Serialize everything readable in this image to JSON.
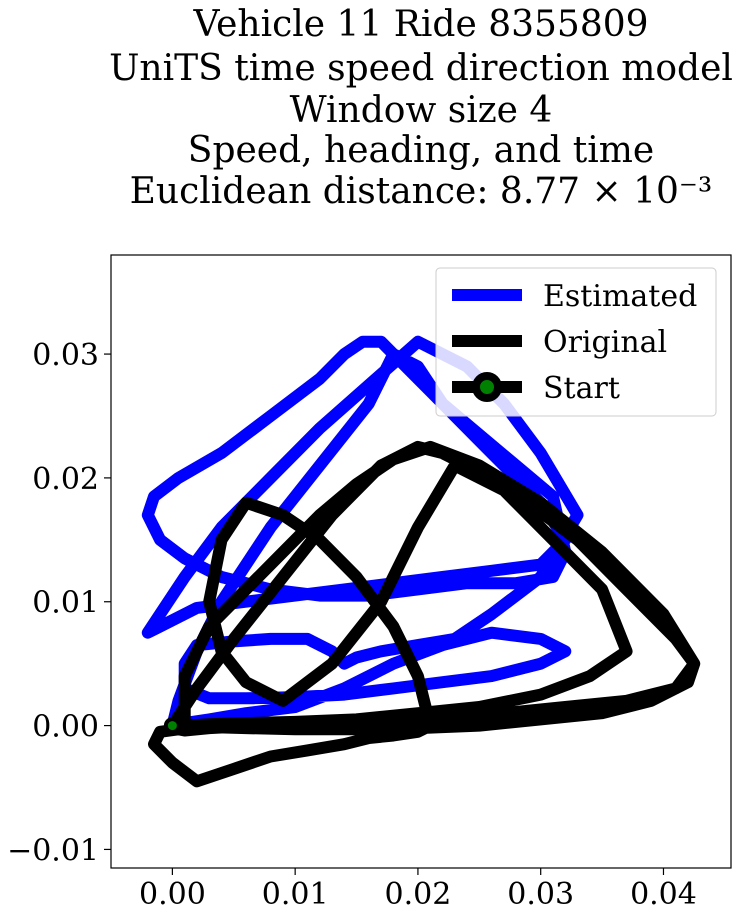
{
  "chart_data": {
    "type": "line",
    "title_lines": [
      "Vehicle 11 Ride 8355809",
      "UniTS time speed direction model",
      "Window size 4",
      "Speed, heading, and time",
      "Euclidean distance: 8.77 × 10⁻³"
    ],
    "xlabel": "",
    "ylabel": "",
    "xlim": [
      -0.005,
      0.0455
    ],
    "ylim": [
      -0.0115,
      0.038
    ],
    "xticks": [
      0.0,
      0.01,
      0.02,
      0.03,
      0.04
    ],
    "xtick_labels": [
      "0.00",
      "0.01",
      "0.02",
      "0.03",
      "0.04"
    ],
    "yticks": [
      -0.01,
      0.0,
      0.01,
      0.02,
      0.03
    ],
    "ytick_labels": [
      "−0.01",
      "0.00",
      "0.01",
      "0.02",
      "0.03"
    ],
    "grid": false,
    "legend_position": "upper-right",
    "series": [
      {
        "name": "Estimated",
        "color": "#0000ff",
        "x": [
          0.0,
          0.0005,
          0.002,
          0.004,
          0.008,
          0.012,
          0.016,
          0.018,
          0.02,
          0.022,
          0.025,
          0.028,
          0.031,
          0.032,
          0.031,
          0.028,
          0.024,
          0.02,
          0.016,
          0.012,
          0.008,
          0.004,
          0.001,
          -0.001,
          -0.002,
          -0.0015,
          0.0005,
          0.004,
          0.008,
          0.012,
          0.014,
          0.0155,
          0.017,
          0.019,
          0.021,
          0.023,
          0.025,
          0.027,
          0.03,
          0.032,
          0.03,
          0.026,
          0.022,
          0.018,
          0.014,
          0.01,
          0.006,
          0.002,
          -0.001,
          -0.002,
          -0.001,
          0.001,
          0.004,
          0.008,
          0.012,
          0.016,
          0.02,
          0.024,
          0.027,
          0.03,
          0.033,
          0.03,
          0.026,
          0.023,
          0.02,
          0.017,
          0.015,
          0.014,
          0.013,
          0.011,
          0.008,
          0.005,
          0.002,
          0.001,
          0.001,
          0.003,
          0.006,
          0.01,
          0.014,
          0.018,
          0.022,
          0.026,
          0.03,
          0.032,
          0.03,
          0.026,
          0.022,
          0.018,
          0.014,
          0.01,
          0.006,
          0.003,
          0.001,
          0.0
        ],
        "y": [
          0.0,
          0.002,
          0.006,
          0.01,
          0.016,
          0.021,
          0.026,
          0.03,
          0.029,
          0.026,
          0.0235,
          0.021,
          0.0185,
          0.014,
          0.012,
          0.0115,
          0.0115,
          0.011,
          0.0105,
          0.0105,
          0.011,
          0.012,
          0.0135,
          0.015,
          0.017,
          0.0185,
          0.02,
          0.022,
          0.025,
          0.028,
          0.03,
          0.031,
          0.031,
          0.029,
          0.027,
          0.025,
          0.023,
          0.021,
          0.018,
          0.015,
          0.013,
          0.0125,
          0.012,
          0.0115,
          0.011,
          0.0105,
          0.01,
          0.0095,
          0.008,
          0.0075,
          0.009,
          0.012,
          0.016,
          0.02,
          0.024,
          0.0275,
          0.031,
          0.029,
          0.026,
          0.022,
          0.017,
          0.012,
          0.009,
          0.007,
          0.0065,
          0.006,
          0.0055,
          0.005,
          0.006,
          0.007,
          0.007,
          0.0068,
          0.0065,
          0.005,
          0.003,
          0.0022,
          0.0022,
          0.0023,
          0.0025,
          0.003,
          0.0035,
          0.004,
          0.005,
          0.006,
          0.007,
          0.0075,
          0.0065,
          0.005,
          0.003,
          0.0015,
          0.001,
          0.0005,
          0.0002,
          0.0
        ]
      },
      {
        "name": "Original",
        "color": "#000000",
        "x": [
          0.0,
          0.002,
          0.005,
          0.009,
          0.013,
          0.017,
          0.02,
          0.022,
          0.025,
          0.029,
          0.033,
          0.037,
          0.041,
          0.0425,
          0.042,
          0.039,
          0.035,
          0.03,
          0.025,
          0.02,
          0.015,
          0.01,
          0.006,
          0.002,
          -0.001,
          -0.0015,
          0.0,
          0.002,
          0.005,
          0.008,
          0.011,
          0.014,
          0.016,
          0.018,
          0.02,
          0.021,
          0.02,
          0.018,
          0.015,
          0.012,
          0.009,
          0.006,
          0.004,
          0.003,
          0.004,
          0.006,
          0.009,
          0.013,
          0.017,
          0.02,
          0.023,
          0.027,
          0.031,
          0.035,
          0.037,
          0.034,
          0.03,
          0.025,
          0.02,
          0.015,
          0.01,
          0.006,
          0.003,
          0.001,
          0.001,
          0.003,
          0.006,
          0.009,
          0.012,
          0.015,
          0.018,
          0.021,
          0.025,
          0.03,
          0.035,
          0.04,
          0.0425,
          0.041,
          0.037,
          0.032,
          0.027,
          0.022,
          0.017,
          0.012,
          0.007,
          0.003,
          0.001,
          0.0,
          0.0
        ],
        "y": [
          0.0,
          0.003,
          0.007,
          0.012,
          0.017,
          0.021,
          0.0225,
          0.022,
          0.0205,
          0.018,
          0.015,
          0.011,
          0.007,
          0.005,
          0.0035,
          0.002,
          0.001,
          0.0005,
          0.0,
          -0.0002,
          -0.0003,
          -0.0003,
          -0.0002,
          -0.0001,
          -0.0005,
          -0.0015,
          -0.003,
          -0.0045,
          -0.0035,
          -0.0025,
          -0.002,
          -0.0015,
          -0.001,
          -0.0008,
          -0.0005,
          0.0,
          0.004,
          0.008,
          0.012,
          0.015,
          0.017,
          0.018,
          0.015,
          0.01,
          0.006,
          0.0035,
          0.002,
          0.005,
          0.01,
          0.016,
          0.021,
          0.019,
          0.015,
          0.011,
          0.006,
          0.004,
          0.0025,
          0.0015,
          0.001,
          0.0005,
          0.0003,
          0.0002,
          0.0001,
          0.0,
          0.004,
          0.008,
          0.011,
          0.014,
          0.017,
          0.0195,
          0.0215,
          0.0225,
          0.021,
          0.018,
          0.014,
          0.009,
          0.005,
          0.003,
          0.002,
          0.0015,
          0.001,
          0.0005,
          0.0002,
          0.0,
          0.0,
          -0.0002,
          -0.0004,
          -0.0002,
          0.0
        ]
      }
    ],
    "start_point": {
      "name": "Start",
      "x": 0.0,
      "y": 0.0,
      "marker_fill": "#008000",
      "marker_edge": "#000000",
      "line_color": "#000000"
    }
  }
}
